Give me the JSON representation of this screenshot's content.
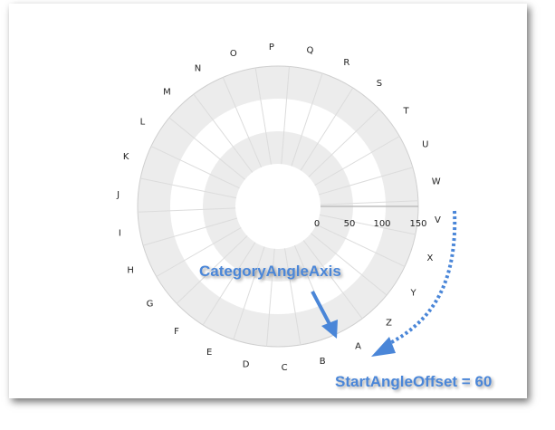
{
  "categories": [
    "A",
    "B",
    "C",
    "D",
    "E",
    "F",
    "G",
    "H",
    "I",
    "J",
    "K",
    "L",
    "M",
    "N",
    "O",
    "P",
    "Q",
    "R",
    "S",
    "T",
    "U",
    "W",
    "V",
    "X",
    "Y",
    "Z"
  ],
  "radius_axis": {
    "ticks": [
      "0",
      "50",
      "100",
      "150"
    ],
    "range": [
      0,
      150
    ]
  },
  "start_angle_offset": 60,
  "annotations": {
    "axis_label": "CategoryAngleAxis",
    "offset_label": "StartAngleOffset = 60"
  },
  "colors": {
    "annotation": "#4a86d8",
    "band": "#ececec",
    "grid": "#d8d8d8"
  }
}
